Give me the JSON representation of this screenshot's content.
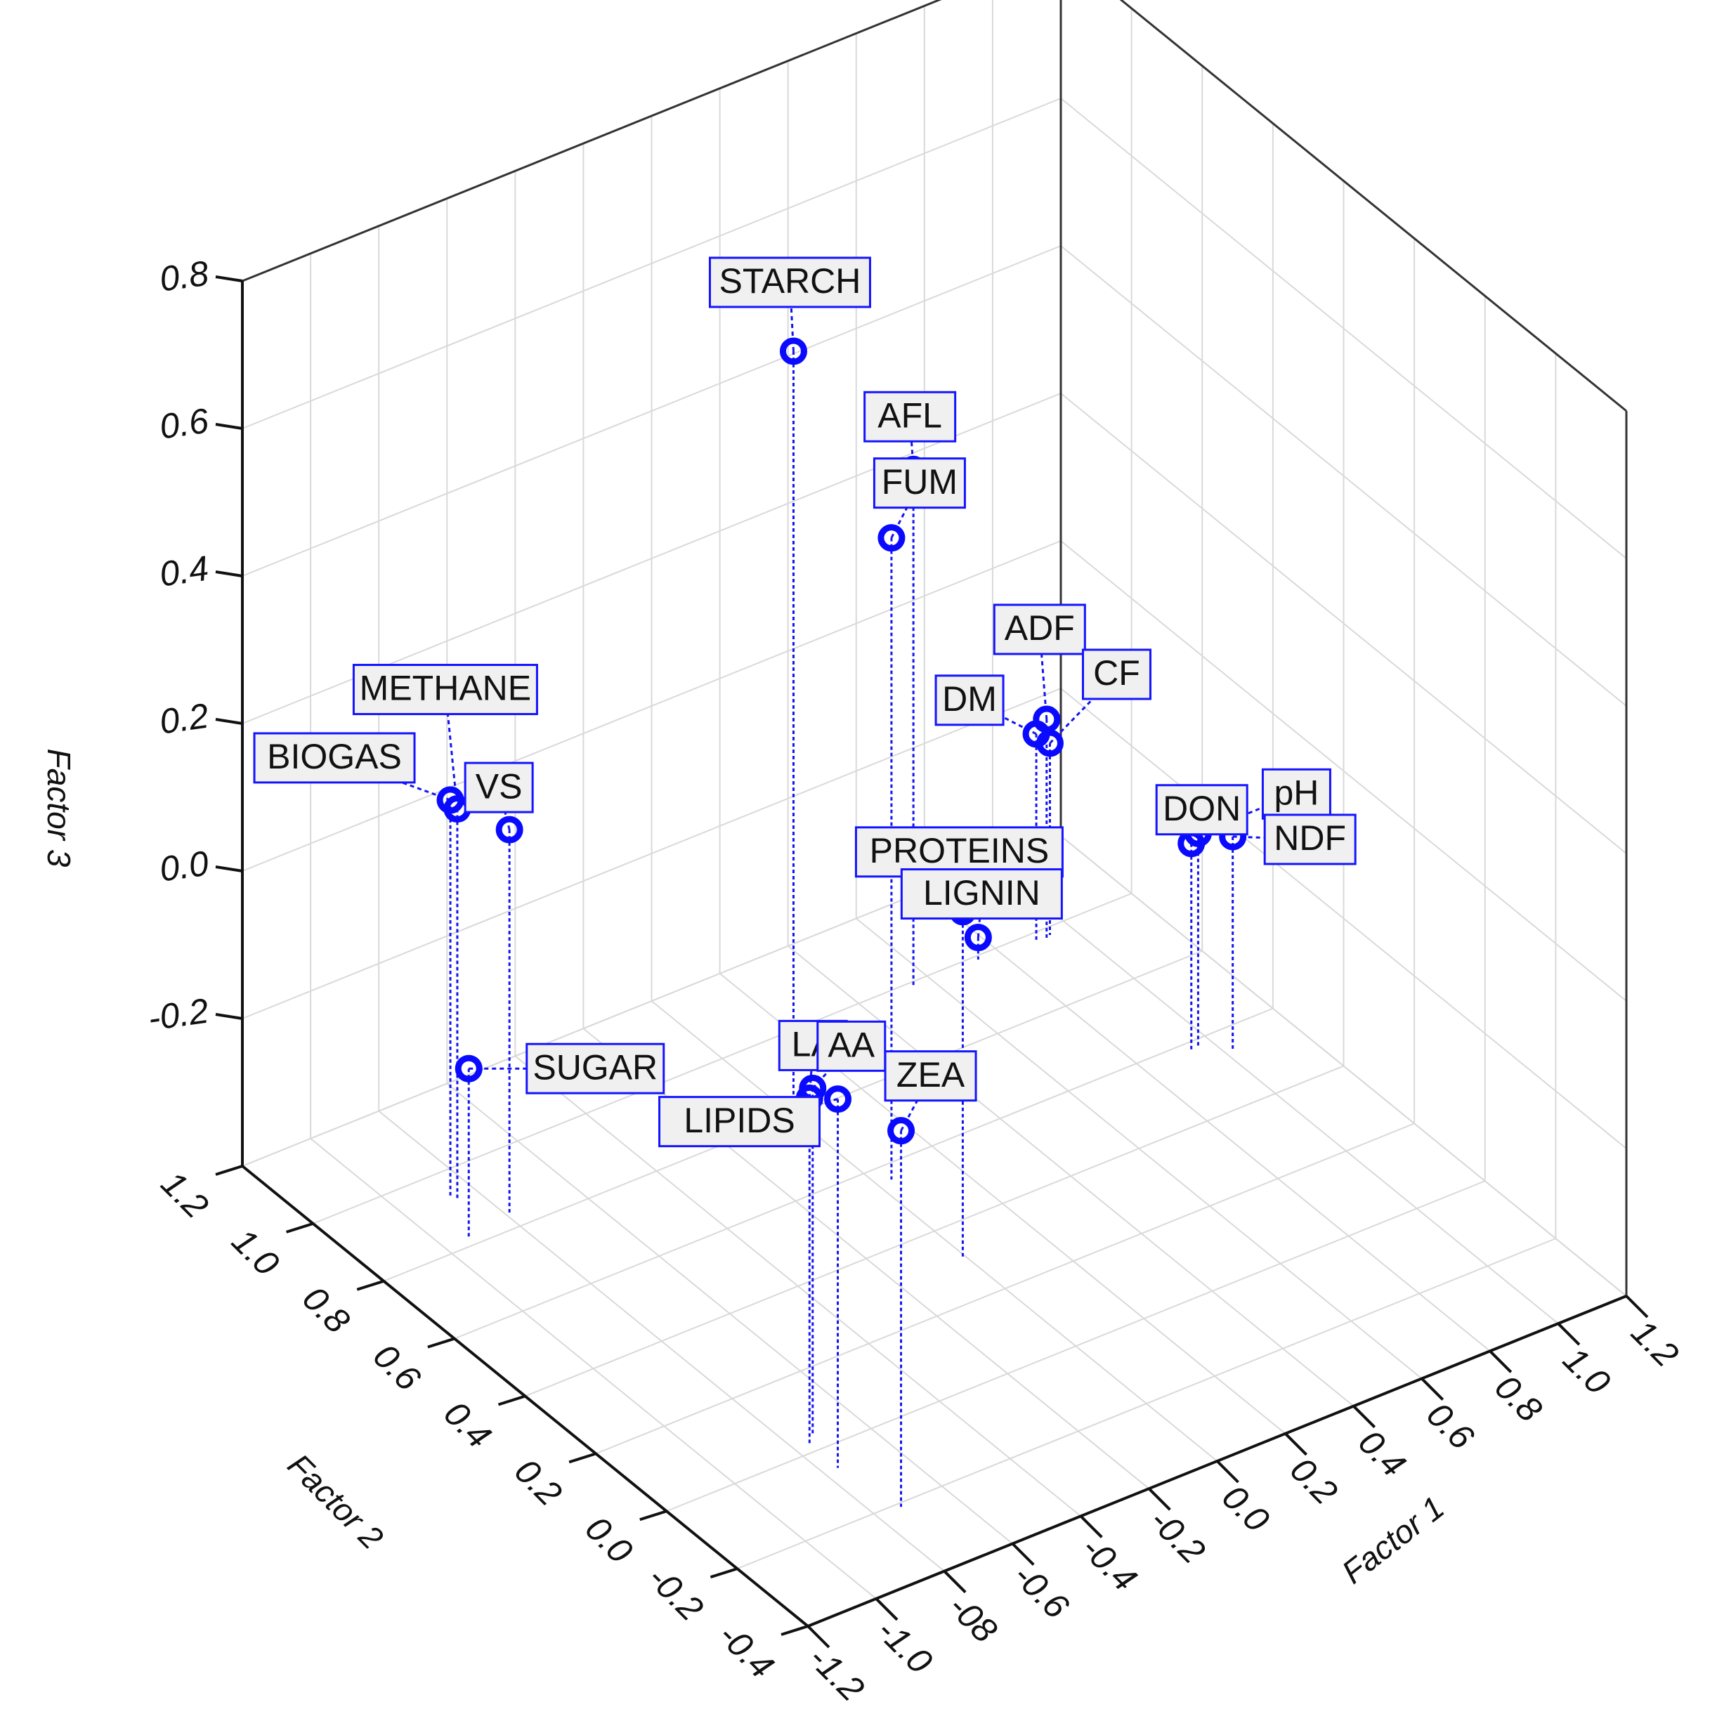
{
  "chart_data": {
    "type": "scatter",
    "title": "",
    "xlabel": "Factor 1",
    "ylabel": "Factor 2",
    "zlabel": "Factor 3",
    "xlim": [
      -1.2,
      1.2
    ],
    "ylim": [
      -0.4,
      1.2
    ],
    "zlim": [
      -0.4,
      0.8
    ],
    "x_ticks": [
      "-1.2",
      "-1.0",
      "-08",
      "-0.6",
      "-0.4",
      "-0.2",
      "0.0",
      "0.2",
      "0.4",
      "0.6",
      "0.8",
      "1.0",
      "1.2"
    ],
    "y_ticks": [
      "-0.4",
      "-0.2",
      "0.0",
      "0.2",
      "0.4",
      "0.6",
      "0.8",
      "1.0",
      "1.2"
    ],
    "z_ticks": [
      "-0.2",
      "0.0",
      "0.2",
      "0.4",
      "0.6",
      "0.8"
    ],
    "grid": true,
    "marker_color": "#0a0aff",
    "points": [
      {
        "label": "STARCH",
        "x": -0.04,
        "y": 0.76,
        "z": 0.66
      },
      {
        "label": "FUM",
        "x": 0.04,
        "y": 0.56,
        "z": 0.47
      },
      {
        "label": "AFL",
        "x": 0.55,
        "y": 0.99,
        "z": 0.3
      },
      {
        "label": "PROTEINS",
        "x": -0.01,
        "y": 0.31,
        "z": 0.07
      },
      {
        "label": "ADF",
        "x": 0.92,
        "y": 0.97,
        "z": -0.1
      },
      {
        "label": "CF",
        "x": 0.94,
        "y": 0.98,
        "z": -0.14
      },
      {
        "label": "DM",
        "x": 0.9,
        "y": 0.98,
        "z": -0.12
      },
      {
        "label": "DON",
        "x": 0.94,
        "y": 0.58,
        "z": -0.12
      },
      {
        "label": "pH",
        "x": 0.96,
        "y": 0.58,
        "z": -0.11
      },
      {
        "label": "NDF",
        "x": 1.02,
        "y": 0.54,
        "z": -0.11
      },
      {
        "label": "LIGNIN",
        "x": 0.74,
        "y": 0.99,
        "z": -0.37
      },
      {
        "label": "METHANE",
        "x": -0.86,
        "y": 0.92,
        "z": 0.13
      },
      {
        "label": "BIOGAS",
        "x": -0.87,
        "y": 0.93,
        "z": 0.14
      },
      {
        "label": "VS",
        "x": -0.79,
        "y": 0.84,
        "z": 0.12
      },
      {
        "label": "SUGAR",
        "x": -0.93,
        "y": 0.82,
        "z": -0.17
      },
      {
        "label": "LA",
        "x": -0.76,
        "y": 0.02,
        "z": 0.07
      },
      {
        "label": "AA",
        "x": -0.73,
        "y": 0.04,
        "z": 0.07
      },
      {
        "label": "LIPIDS",
        "x": -0.76,
        "y": -0.06,
        "z": 0.1
      },
      {
        "label": "ZEA",
        "x": -0.73,
        "y": -0.21,
        "z": 0.11
      }
    ]
  }
}
